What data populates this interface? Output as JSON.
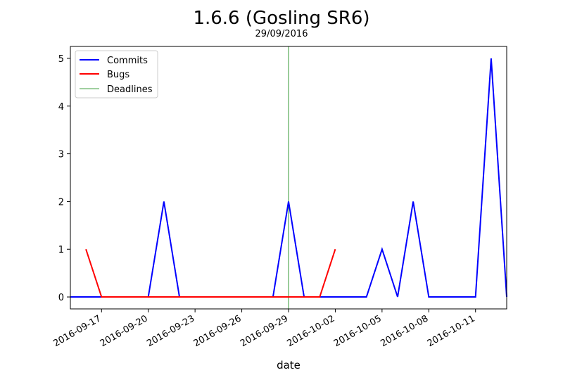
{
  "chart_data": {
    "type": "line",
    "title": "1.6.6 (Gosling SR6)",
    "subtitle": "29/09/2016",
    "xlabel": "date",
    "ylabel": "",
    "xlim": [
      "2016-09-15",
      "2016-10-13"
    ],
    "ylim": [
      -0.25,
      5.25
    ],
    "x_ticks": [
      "2016-09-17",
      "2016-09-20",
      "2016-09-23",
      "2016-09-26",
      "2016-09-29",
      "2016-10-02",
      "2016-10-05",
      "2016-10-08",
      "2016-10-11"
    ],
    "y_ticks": [
      "0",
      "1",
      "2",
      "3",
      "4",
      "5"
    ],
    "grid": false,
    "legend_position": "top-left",
    "series": [
      {
        "name": "Commits",
        "color": "#0000ff",
        "x": [
          "2016-09-15",
          "2016-09-16",
          "2016-09-17",
          "2016-09-18",
          "2016-09-19",
          "2016-09-20",
          "2016-09-21",
          "2016-09-22",
          "2016-09-23",
          "2016-09-24",
          "2016-09-25",
          "2016-09-26",
          "2016-09-27",
          "2016-09-28",
          "2016-09-29",
          "2016-09-30",
          "2016-10-01",
          "2016-10-02",
          "2016-10-03",
          "2016-10-04",
          "2016-10-05",
          "2016-10-06",
          "2016-10-07",
          "2016-10-08",
          "2016-10-09",
          "2016-10-10",
          "2016-10-11",
          "2016-10-12",
          "2016-10-13"
        ],
        "values": [
          0,
          0,
          0,
          0,
          0,
          0,
          2,
          0,
          0,
          0,
          0,
          0,
          0,
          0,
          2,
          0,
          0,
          0,
          0,
          0,
          1,
          0,
          2,
          0,
          0,
          0,
          0,
          5,
          0
        ]
      },
      {
        "name": "Bugs",
        "color": "#ff0000",
        "x": [
          "2016-09-16",
          "2016-09-17",
          "2016-09-18",
          "2016-09-19",
          "2016-09-20",
          "2016-09-21",
          "2016-09-22",
          "2016-09-23",
          "2016-09-24",
          "2016-09-25",
          "2016-09-26",
          "2016-09-27",
          "2016-09-28",
          "2016-09-29",
          "2016-09-30",
          "2016-10-01",
          "2016-10-02"
        ],
        "values": [
          1,
          0,
          0,
          0,
          0,
          0,
          0,
          0,
          0,
          0,
          0,
          0,
          0,
          0,
          0,
          0,
          1
        ]
      }
    ],
    "deadlines": {
      "name": "Deadlines",
      "color": "#008000",
      "x": [
        "2016-09-29"
      ]
    }
  }
}
